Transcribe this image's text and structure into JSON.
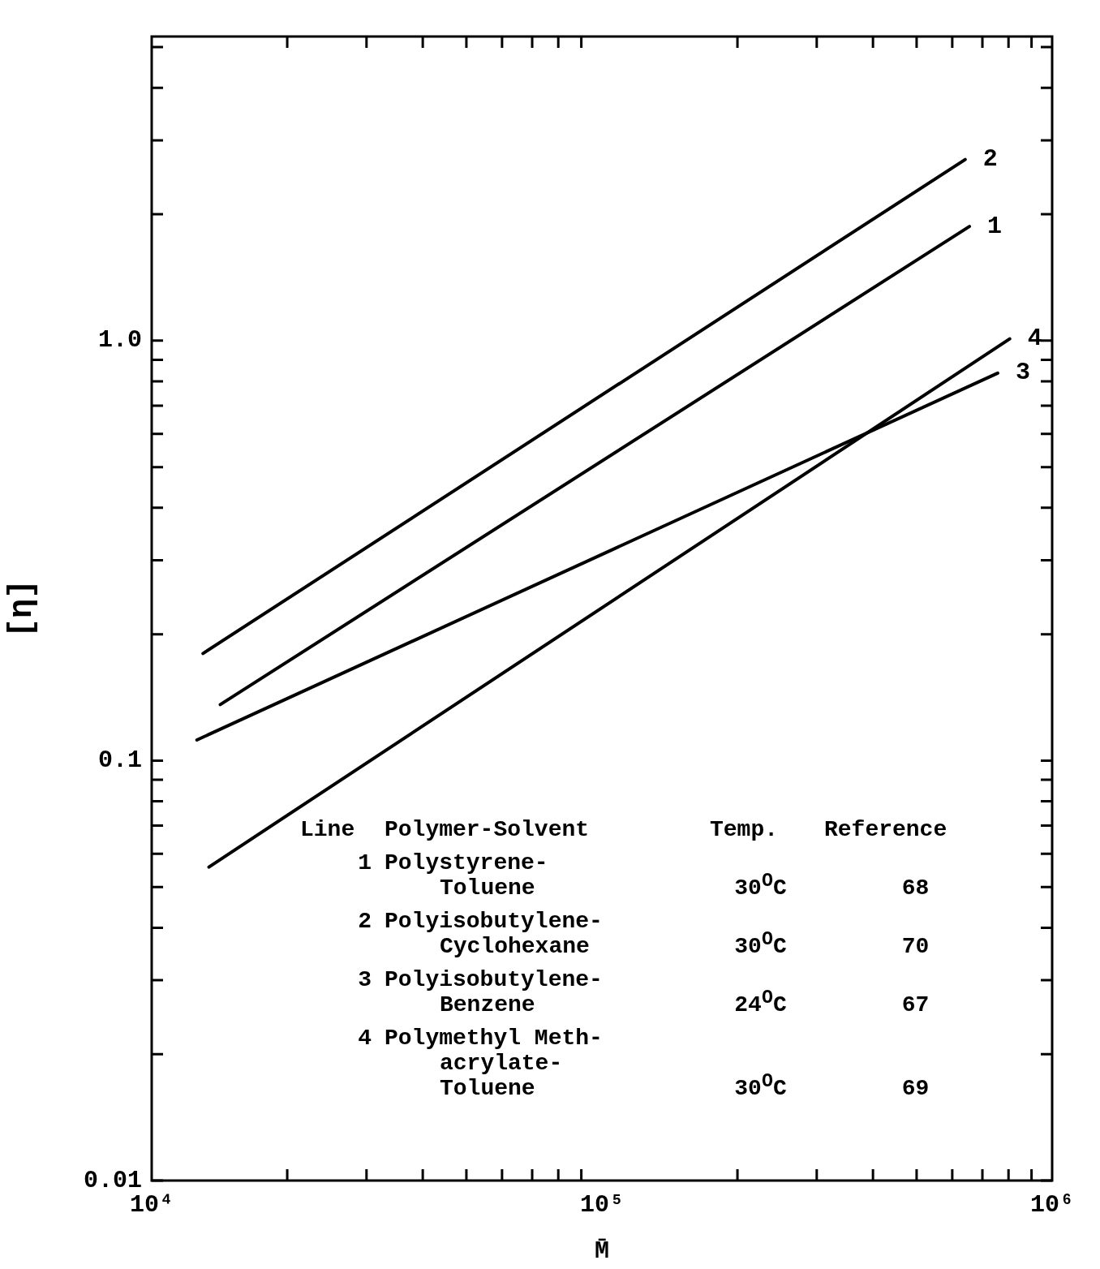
{
  "chart_data": {
    "type": "line",
    "xlabel": "M̄",
    "ylabel": "[η]",
    "log": "xy",
    "legend": "right",
    "marker": "none",
    "line_style": "solid",
    "xlim": [
      10000,
      1000000
    ],
    "xticks": [
      {
        "value": 10000,
        "label": "10⁴"
      },
      {
        "value": 20000,
        "label": null
      },
      {
        "value": 30000,
        "label": null
      },
      {
        "value": 40000,
        "label": null
      },
      {
        "value": 50000,
        "label": null
      },
      {
        "value": 60000,
        "label": null
      },
      {
        "value": 70000,
        "label": null
      },
      {
        "value": 80000,
        "label": null
      },
      {
        "value": 90000,
        "label": null
      },
      {
        "value": 100000,
        "label": "10⁵"
      },
      {
        "value": 200000,
        "label": null
      },
      {
        "value": 300000,
        "label": null
      },
      {
        "value": 400000,
        "label": null
      },
      {
        "value": 500000,
        "label": null
      },
      {
        "value": 600000,
        "label": null
      },
      {
        "value": 700000,
        "label": null
      },
      {
        "value": 800000,
        "label": null
      },
      {
        "value": 900000,
        "label": null
      },
      {
        "value": 1000000,
        "label": "10⁶"
      }
    ],
    "ylim": [
      0.01,
      5.3
    ],
    "yticks": [
      {
        "value": 0.01,
        "label": "0.01"
      },
      {
        "value": 0.02,
        "label": null
      },
      {
        "value": 0.03,
        "label": null
      },
      {
        "value": 0.04,
        "label": null
      },
      {
        "value": 0.05,
        "label": null
      },
      {
        "value": 0.06,
        "label": null
      },
      {
        "value": 0.07,
        "label": null
      },
      {
        "value": 0.08,
        "label": null
      },
      {
        "value": 0.09,
        "label": null
      },
      {
        "value": 0.1,
        "label": "0.1"
      },
      {
        "value": 0.2,
        "label": null
      },
      {
        "value": 0.3,
        "label": null
      },
      {
        "value": 0.4,
        "label": null
      },
      {
        "value": 0.5,
        "label": null
      },
      {
        "value": 0.6,
        "label": null
      },
      {
        "value": 0.7,
        "label": null
      },
      {
        "value": 0.8,
        "label": null
      },
      {
        "value": 0.9,
        "label": null
      },
      {
        "value": 1,
        "label": "1.0"
      },
      {
        "value": 2,
        "label": null
      },
      {
        "value": 3,
        "label": null
      },
      {
        "value": 4,
        "label": null
      },
      {
        "value": 5,
        "label": null
      }
    ],
    "series": [
      {
        "name": "1",
        "color": "#000000",
        "x": [
          14200,
          655000
        ],
        "values": [
          0.136,
          1.87
        ]
      },
      {
        "name": "2",
        "color": "#000000",
        "x": [
          13000,
          641000
        ],
        "values": [
          0.18,
          2.7
        ]
      },
      {
        "name": "3",
        "color": "#000000",
        "x": [
          12600,
          757000
        ],
        "values": [
          0.112,
          0.837
        ]
      },
      {
        "name": "4",
        "color": "#000000",
        "x": [
          13400,
          805000
        ],
        "values": [
          0.0558,
          1.01
        ]
      }
    ],
    "annotations": [
      "Line",
      "Polymer-Solvent",
      "Temp.",
      "Reference",
      "1",
      "Polystyrene-\nToluene",
      "30$^{O}$C",
      "68",
      "2",
      "Polyisobutylene-\nCyclohexane",
      "30$^{O}$C",
      "70",
      "3",
      "Polyisobutylene-\nBenzene",
      "24$^{O}$C",
      "67",
      "4",
      "Polymethyl Meth-\nacrylate-\nToluene",
      "30$^{O}$C",
      "69"
    ]
  }
}
